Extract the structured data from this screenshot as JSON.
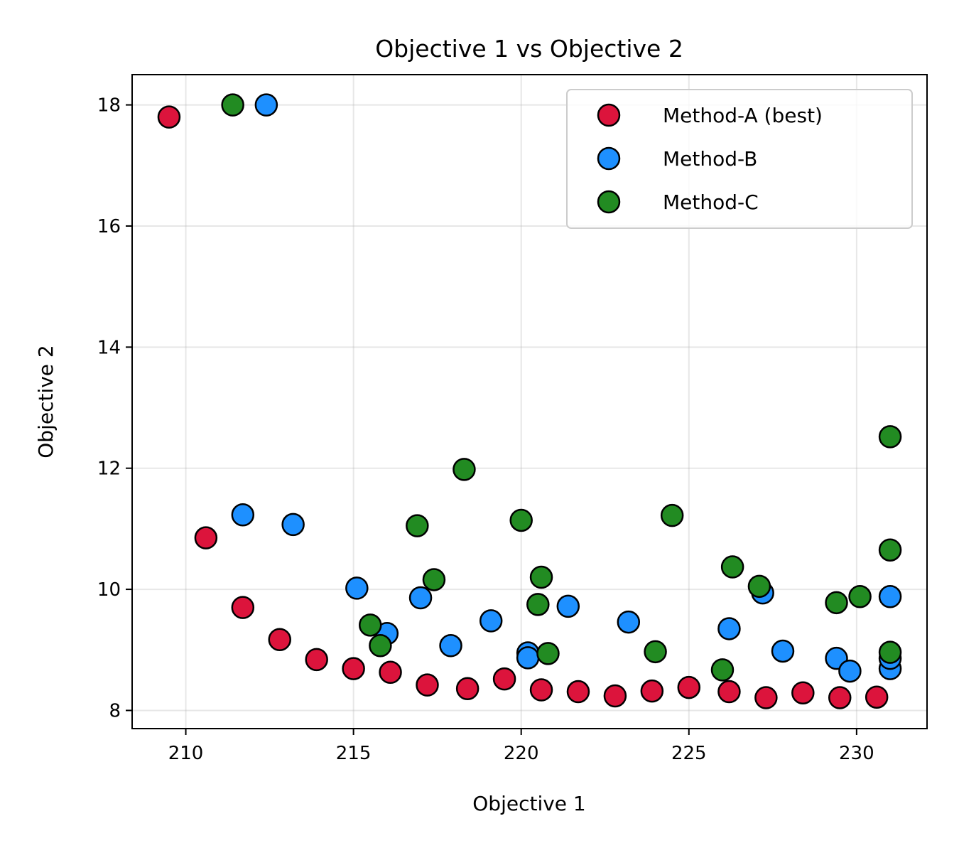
{
  "chart_data": {
    "type": "scatter",
    "title": "Objective 1 vs Objective 2",
    "xlabel": "Objective 1",
    "ylabel": "Objective 2",
    "xlim": [
      208.4,
      232.1
    ],
    "ylim": [
      7.7,
      18.5
    ],
    "xticks": [
      210,
      215,
      220,
      225,
      230
    ],
    "yticks": [
      8,
      10,
      12,
      14,
      16,
      18
    ],
    "xtick_labels": [
      "210",
      "215",
      "220",
      "225",
      "230"
    ],
    "ytick_labels": [
      "8",
      "10",
      "12",
      "14",
      "16",
      "18"
    ],
    "grid": true,
    "legend_position": "top-right",
    "series": [
      {
        "name": "Method-A (best)",
        "color": "#dc143c",
        "points": [
          [
            209.5,
            17.8
          ],
          [
            210.6,
            10.85
          ],
          [
            211.7,
            9.7
          ],
          [
            212.8,
            9.17
          ],
          [
            213.9,
            8.84
          ],
          [
            215.0,
            8.69
          ],
          [
            216.1,
            8.63
          ],
          [
            217.2,
            8.42
          ],
          [
            218.4,
            8.36
          ],
          [
            219.5,
            8.52
          ],
          [
            220.6,
            8.34
          ],
          [
            221.7,
            8.31
          ],
          [
            222.8,
            8.24
          ],
          [
            223.9,
            8.32
          ],
          [
            225.0,
            8.38
          ],
          [
            226.2,
            8.31
          ],
          [
            227.3,
            8.21
          ],
          [
            228.4,
            8.29
          ],
          [
            229.5,
            8.21
          ],
          [
            230.6,
            8.22
          ]
        ]
      },
      {
        "name": "Method-B",
        "color": "#1e90ff",
        "points": [
          [
            212.4,
            18.0
          ],
          [
            211.7,
            11.23
          ],
          [
            213.2,
            11.07
          ],
          [
            215.1,
            10.02
          ],
          [
            216.0,
            9.27
          ],
          [
            217.0,
            9.86
          ],
          [
            217.9,
            9.07
          ],
          [
            219.1,
            9.48
          ],
          [
            220.2,
            8.95
          ],
          [
            220.2,
            8.87
          ],
          [
            221.4,
            9.72
          ],
          [
            223.2,
            9.46
          ],
          [
            226.2,
            9.35
          ],
          [
            227.2,
            9.94
          ],
          [
            227.8,
            8.98
          ],
          [
            229.4,
            8.86
          ],
          [
            229.8,
            8.65
          ],
          [
            231.0,
            9.88
          ],
          [
            231.0,
            8.69
          ],
          [
            231.0,
            8.86
          ]
        ]
      },
      {
        "name": "Method-C",
        "color": "#228b22",
        "points": [
          [
            211.4,
            18.0
          ],
          [
            215.5,
            9.41
          ],
          [
            215.8,
            9.07
          ],
          [
            216.9,
            11.05
          ],
          [
            217.4,
            10.16
          ],
          [
            218.3,
            11.98
          ],
          [
            220.0,
            11.14
          ],
          [
            220.5,
            9.75
          ],
          [
            220.6,
            10.2
          ],
          [
            220.8,
            8.94
          ],
          [
            224.0,
            8.97
          ],
          [
            224.5,
            11.22
          ],
          [
            226.0,
            8.67
          ],
          [
            226.3,
            10.37
          ],
          [
            227.1,
            10.05
          ],
          [
            229.4,
            9.78
          ],
          [
            230.1,
            9.88
          ],
          [
            231.0,
            12.52
          ],
          [
            231.0,
            10.65
          ],
          [
            231.0,
            8.96
          ]
        ]
      }
    ]
  }
}
